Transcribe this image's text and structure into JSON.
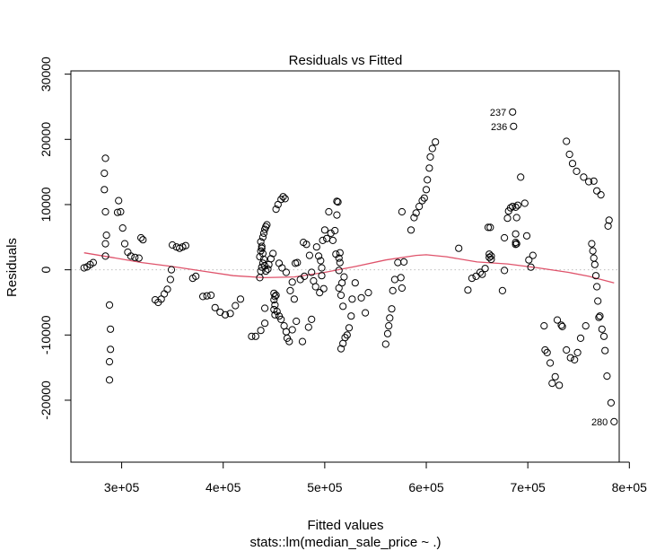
{
  "chart_data": {
    "type": "scatter",
    "title": "Residuals vs Fitted",
    "xlabel": "Fitted values",
    "subtitle": "stats::lm(median_sale_price ~ .)",
    "ylabel": "Residuals",
    "xlim": [
      250000,
      790000
    ],
    "ylim": [
      -29500,
      30500
    ],
    "x_ticks": [
      300000,
      400000,
      500000,
      600000,
      700000,
      800000
    ],
    "x_tick_labels": [
      "3e+05",
      "4e+05",
      "5e+05",
      "6e+05",
      "7e+05",
      "8e+05"
    ],
    "y_ticks": [
      -20000,
      -10000,
      0,
      10000,
      20000,
      30000
    ],
    "y_tick_labels": [
      "-20000",
      "-10000",
      "0",
      "10000",
      "20000",
      "30000"
    ],
    "reference_line": 0,
    "point_color": "#000000",
    "smooth_color": "#DF536B",
    "ref_line_color": "#BEBEBE",
    "points": [
      [
        263000,
        300
      ],
      [
        266000,
        450
      ],
      [
        269000,
        800
      ],
      [
        272000,
        1100
      ],
      [
        284000,
        17100
      ],
      [
        283000,
        14800
      ],
      [
        283000,
        12300
      ],
      [
        284000,
        8900
      ],
      [
        285000,
        5300
      ],
      [
        284000,
        4000
      ],
      [
        284000,
        2100
      ],
      [
        288000,
        -5400
      ],
      [
        289000,
        -9100
      ],
      [
        289000,
        -12200
      ],
      [
        288000,
        -14100
      ],
      [
        288000,
        -16900
      ],
      [
        297000,
        10600
      ],
      [
        296000,
        8800
      ],
      [
        299000,
        8900
      ],
      [
        301000,
        6400
      ],
      [
        303000,
        4000
      ],
      [
        306000,
        2700
      ],
      [
        309000,
        2100
      ],
      [
        313000,
        1900
      ],
      [
        317000,
        1800
      ],
      [
        319000,
        4900
      ],
      [
        321000,
        4600
      ],
      [
        333000,
        -4600
      ],
      [
        336000,
        -5000
      ],
      [
        339000,
        -4500
      ],
      [
        342000,
        -3700
      ],
      [
        345000,
        -3000
      ],
      [
        348000,
        -1500
      ],
      [
        349000,
        0
      ],
      [
        350000,
        3800
      ],
      [
        354000,
        3500
      ],
      [
        357000,
        3300
      ],
      [
        360000,
        3500
      ],
      [
        363000,
        3700
      ],
      [
        370000,
        -1300
      ],
      [
        373000,
        -1000
      ],
      [
        380000,
        -4100
      ],
      [
        384000,
        -4000
      ],
      [
        388000,
        -3900
      ],
      [
        392000,
        -5800
      ],
      [
        397000,
        -6500
      ],
      [
        402000,
        -6900
      ],
      [
        407000,
        -6700
      ],
      [
        412000,
        -5500
      ],
      [
        417000,
        -4500
      ],
      [
        428000,
        -10200
      ],
      [
        432000,
        -10200
      ],
      [
        437000,
        -9300
      ],
      [
        441000,
        -8200
      ],
      [
        441000,
        -5900
      ],
      [
        436000,
        -1200
      ],
      [
        437000,
        -200
      ],
      [
        438000,
        400
      ],
      [
        439000,
        1000
      ],
      [
        436000,
        2000
      ],
      [
        437000,
        2900
      ],
      [
        438000,
        3600
      ],
      [
        437000,
        4300
      ],
      [
        439000,
        5000
      ],
      [
        440000,
        5600
      ],
      [
        441000,
        6200
      ],
      [
        442000,
        6600
      ],
      [
        443000,
        6900
      ],
      [
        438000,
        3300
      ],
      [
        439000,
        2500
      ],
      [
        440000,
        1600
      ],
      [
        441000,
        600
      ],
      [
        442000,
        -200
      ],
      [
        444000,
        100
      ],
      [
        445000,
        800
      ],
      [
        447000,
        1700
      ],
      [
        449000,
        2500
      ],
      [
        450000,
        -3600
      ],
      [
        451000,
        -4100
      ],
      [
        450000,
        -4600
      ],
      [
        451000,
        -5400
      ],
      [
        450000,
        -6100
      ],
      [
        451000,
        -6900
      ],
      [
        452000,
        -3900
      ],
      [
        453000,
        -6400
      ],
      [
        455000,
        -7100
      ],
      [
        457000,
        -7600
      ],
      [
        460000,
        -8600
      ],
      [
        462000,
        -9500
      ],
      [
        463000,
        -10500
      ],
      [
        465000,
        -11000
      ],
      [
        468000,
        -9200
      ],
      [
        452000,
        9300
      ],
      [
        454000,
        10000
      ],
      [
        457000,
        10800
      ],
      [
        459000,
        11200
      ],
      [
        461000,
        10900
      ],
      [
        455000,
        1000
      ],
      [
        458000,
        300
      ],
      [
        462000,
        -400
      ],
      [
        466000,
        -3200
      ],
      [
        468000,
        -1900
      ],
      [
        470000,
        -4500
      ],
      [
        472000,
        -7900
      ],
      [
        471000,
        1000
      ],
      [
        473000,
        1100
      ],
      [
        476000,
        -1500
      ],
      [
        479000,
        4200
      ],
      [
        482000,
        3900
      ],
      [
        480000,
        -1000
      ],
      [
        484000,
        -8800
      ],
      [
        487000,
        -7600
      ],
      [
        478000,
        -11000
      ],
      [
        485000,
        2200
      ],
      [
        487000,
        -400
      ],
      [
        489000,
        -1700
      ],
      [
        491000,
        -2600
      ],
      [
        492000,
        3500
      ],
      [
        494000,
        2100
      ],
      [
        496000,
        1400
      ],
      [
        497000,
        300
      ],
      [
        498000,
        4500
      ],
      [
        500000,
        6100
      ],
      [
        502000,
        4800
      ],
      [
        495000,
        -3500
      ],
      [
        497000,
        -900
      ],
      [
        499000,
        -2900
      ],
      [
        504000,
        8900
      ],
      [
        506000,
        5600
      ],
      [
        508000,
        4500
      ],
      [
        510000,
        6000
      ],
      [
        511000,
        2400
      ],
      [
        512000,
        10500
      ],
      [
        513000,
        10400
      ],
      [
        512000,
        8400
      ],
      [
        514000,
        1800
      ],
      [
        515000,
        1100
      ],
      [
        515000,
        2600
      ],
      [
        514000,
        -100
      ],
      [
        514000,
        -2800
      ],
      [
        516000,
        -3900
      ],
      [
        517000,
        -2000
      ],
      [
        519000,
        -1100
      ],
      [
        518000,
        -5600
      ],
      [
        516000,
        -12100
      ],
      [
        518000,
        -11300
      ],
      [
        520000,
        -10400
      ],
      [
        522000,
        -10000
      ],
      [
        524000,
        -8900
      ],
      [
        526000,
        -7100
      ],
      [
        527000,
        -4500
      ],
      [
        530000,
        -2000
      ],
      [
        536000,
        -4300
      ],
      [
        540000,
        -6600
      ],
      [
        543000,
        -3500
      ],
      [
        560000,
        -11400
      ],
      [
        562000,
        -9800
      ],
      [
        563000,
        -8600
      ],
      [
        564000,
        -7400
      ],
      [
        566000,
        -6000
      ],
      [
        567000,
        -3200
      ],
      [
        569000,
        -1500
      ],
      [
        572000,
        1100
      ],
      [
        575000,
        -1200
      ],
      [
        576000,
        -2800
      ],
      [
        576000,
        8900
      ],
      [
        578000,
        1200
      ],
      [
        585000,
        6100
      ],
      [
        588000,
        8000
      ],
      [
        590000,
        8700
      ],
      [
        593000,
        9700
      ],
      [
        596000,
        10600
      ],
      [
        598000,
        11000
      ],
      [
        600000,
        12300
      ],
      [
        601000,
        13800
      ],
      [
        603000,
        15600
      ],
      [
        604000,
        17300
      ],
      [
        606000,
        18600
      ],
      [
        609000,
        19600
      ],
      [
        632000,
        3300
      ],
      [
        641000,
        -3100
      ],
      [
        645000,
        -1300
      ],
      [
        649000,
        -1000
      ],
      [
        653000,
        -400
      ],
      [
        655000,
        -700
      ],
      [
        658000,
        200
      ],
      [
        662000,
        1900
      ],
      [
        664000,
        1600
      ],
      [
        661000,
        6500
      ],
      [
        663000,
        6500
      ],
      [
        662000,
        2400
      ],
      [
        664000,
        2100
      ],
      [
        675000,
        -3200
      ],
      [
        677000,
        -100
      ],
      [
        677000,
        4900
      ],
      [
        680000,
        7900
      ],
      [
        681000,
        9000
      ],
      [
        683000,
        9500
      ],
      [
        685000,
        9700
      ],
      [
        688000,
        9600
      ],
      [
        690000,
        9900
      ],
      [
        689000,
        8000
      ],
      [
        688000,
        5500
      ],
      [
        689000,
        4000
      ],
      [
        688000,
        4200
      ],
      [
        688000,
        3900
      ],
      [
        693000,
        14200
      ],
      [
        697000,
        10200
      ],
      [
        699000,
        5200
      ],
      [
        701000,
        1500
      ],
      [
        703000,
        400
      ],
      [
        705000,
        2200
      ],
      [
        685000,
        24200
      ],
      [
        686000,
        22000
      ],
      [
        716000,
        -8600
      ],
      [
        717000,
        -12300
      ],
      [
        719000,
        -12700
      ],
      [
        722000,
        -14300
      ],
      [
        724000,
        -17400
      ],
      [
        727000,
        -16400
      ],
      [
        729000,
        -7700
      ],
      [
        731000,
        -17700
      ],
      [
        733000,
        -8500
      ],
      [
        734000,
        -8700
      ],
      [
        738000,
        19700
      ],
      [
        741000,
        17700
      ],
      [
        744000,
        16300
      ],
      [
        748000,
        15100
      ],
      [
        755000,
        14200
      ],
      [
        760000,
        13500
      ],
      [
        765000,
        13600
      ],
      [
        768000,
        12100
      ],
      [
        772000,
        11500
      ],
      [
        738000,
        -12300
      ],
      [
        742000,
        -13500
      ],
      [
        746000,
        -13800
      ],
      [
        749000,
        -12700
      ],
      [
        752000,
        -10500
      ],
      [
        757000,
        -8600
      ],
      [
        763000,
        4000
      ],
      [
        764000,
        2900
      ],
      [
        765000,
        1800
      ],
      [
        766000,
        800
      ],
      [
        767000,
        -900
      ],
      [
        768000,
        -2600
      ],
      [
        769000,
        -4800
      ],
      [
        770000,
        -7300
      ],
      [
        771000,
        -7100
      ],
      [
        773000,
        -9100
      ],
      [
        775000,
        -10200
      ],
      [
        776000,
        -12400
      ],
      [
        778000,
        -16300
      ],
      [
        779000,
        6700
      ],
      [
        780000,
        7600
      ],
      [
        782000,
        -20400
      ],
      [
        785000,
        -23300
      ]
    ],
    "labeled_points": [
      {
        "label": "237",
        "x": 685000,
        "y": 24200
      },
      {
        "label": "236",
        "x": 686000,
        "y": 22000
      },
      {
        "label": "280",
        "x": 785000,
        "y": -23300
      }
    ],
    "smooth_line": [
      [
        263000,
        2600
      ],
      [
        290000,
        1900
      ],
      [
        320000,
        1100
      ],
      [
        350000,
        500
      ],
      [
        380000,
        -200
      ],
      [
        410000,
        -900
      ],
      [
        440000,
        -1200
      ],
      [
        470000,
        -1100
      ],
      [
        500000,
        -400
      ],
      [
        530000,
        500
      ],
      [
        560000,
        1500
      ],
      [
        590000,
        2200
      ],
      [
        600000,
        2300
      ],
      [
        620000,
        2000
      ],
      [
        650000,
        1200
      ],
      [
        680000,
        900
      ],
      [
        710000,
        300
      ],
      [
        740000,
        -400
      ],
      [
        760000,
        -1000
      ],
      [
        785000,
        -2000
      ]
    ]
  }
}
